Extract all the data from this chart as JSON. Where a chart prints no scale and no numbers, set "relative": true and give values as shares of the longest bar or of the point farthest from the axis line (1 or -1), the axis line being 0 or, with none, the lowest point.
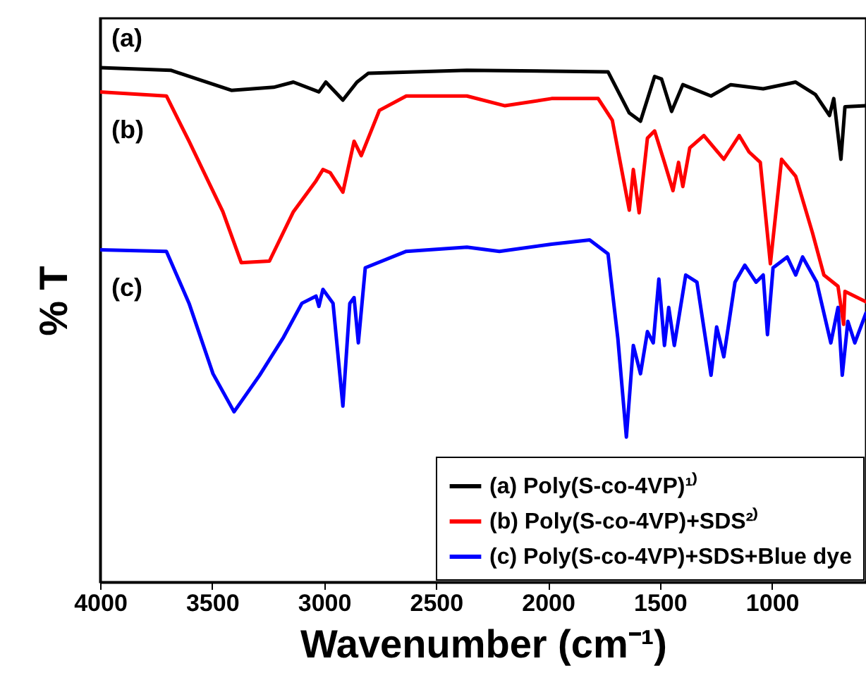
{
  "chart_data": {
    "type": "line",
    "relative": true,
    "xlabel": "Wavenumber (cm⁻¹)",
    "ylabel": "% T",
    "xlim": [
      4000,
      580
    ],
    "xticks": [
      4000,
      3500,
      3000,
      2500,
      2000,
      1500,
      1000
    ],
    "legend": "bottom right",
    "grid": false,
    "marker": "none",
    "line_style": "solid",
    "annotations": [
      "(a)",
      "(b)",
      "(c)"
    ],
    "series": [
      {
        "name": "(a) Poly(S-co-4VP)¹⁾",
        "color": "#000000",
        "x": [
          4000,
          3685,
          3414,
          3225,
          3137,
          3023,
          2992,
          2916,
          2853,
          2803,
          2362,
          1732,
          1637,
          1587,
          1524,
          1493,
          1448,
          1398,
          1272,
          1184,
          1039,
          894,
          806,
          743,
          724,
          692,
          674,
          580
        ],
        "values": [
          1.0,
          0.995,
          0.956,
          0.962,
          0.972,
          0.953,
          0.972,
          0.937,
          0.972,
          0.989,
          0.995,
          0.992,
          0.912,
          0.896,
          0.983,
          0.978,
          0.915,
          0.967,
          0.945,
          0.967,
          0.959,
          0.972,
          0.948,
          0.907,
          0.94,
          0.822,
          0.924,
          0.926
        ]
      },
      {
        "name": "(b) Poly(S-co-4VP)+SDS²⁾",
        "color": "#ff0000",
        "x": [
          4000,
          3704,
          3603,
          3452,
          3370,
          3244,
          3137,
          3036,
          3005,
          2973,
          2916,
          2866,
          2834,
          2753,
          2633,
          2362,
          2192,
          1984,
          1776,
          1713,
          1637,
          1619,
          1593,
          1556,
          1524,
          1480,
          1442,
          1417,
          1398,
          1367,
          1304,
          1215,
          1146,
          1102,
          1052,
          1007,
          957,
          894,
          819,
          768,
          705,
          680,
          674,
          580
        ],
        "values": [
          0.953,
          0.945,
          0.857,
          0.72,
          0.621,
          0.624,
          0.72,
          0.78,
          0.802,
          0.796,
          0.758,
          0.857,
          0.829,
          0.917,
          0.945,
          0.945,
          0.926,
          0.94,
          0.94,
          0.898,
          0.723,
          0.802,
          0.718,
          0.863,
          0.877,
          0.816,
          0.761,
          0.816,
          0.769,
          0.844,
          0.868,
          0.822,
          0.868,
          0.836,
          0.816,
          0.619,
          0.822,
          0.789,
          0.679,
          0.597,
          0.575,
          0.501,
          0.565,
          0.545
        ]
      },
      {
        "name": "(c) Poly(S-co-4VP)+SDS+Blue dye",
        "color": "#0000ff",
        "x": [
          4000,
          3704,
          3603,
          3496,
          3402,
          3288,
          3181,
          3099,
          3036,
          3023,
          3005,
          2960,
          2916,
          2885,
          2866,
          2847,
          2816,
          2633,
          2362,
          2217,
          1984,
          1814,
          1732,
          1688,
          1650,
          1619,
          1587,
          1556,
          1530,
          1505,
          1480,
          1461,
          1436,
          1385,
          1335,
          1272,
          1247,
          1215,
          1165,
          1121,
          1071,
          1039,
          1020,
          995,
          932,
          894,
          863,
          800,
          737,
          705,
          686,
          661,
          630,
          580
        ],
        "values": [
          0.646,
          0.643,
          0.542,
          0.405,
          0.331,
          0.402,
          0.476,
          0.542,
          0.556,
          0.536,
          0.569,
          0.542,
          0.342,
          0.542,
          0.553,
          0.465,
          0.611,
          0.643,
          0.651,
          0.643,
          0.657,
          0.665,
          0.638,
          0.473,
          0.282,
          0.46,
          0.405,
          0.487,
          0.465,
          0.589,
          0.46,
          0.534,
          0.46,
          0.597,
          0.583,
          0.402,
          0.496,
          0.438,
          0.583,
          0.616,
          0.583,
          0.597,
          0.481,
          0.611,
          0.632,
          0.597,
          0.632,
          0.583,
          0.465,
          0.534,
          0.402,
          0.507,
          0.465,
          0.523
        ]
      }
    ]
  }
}
